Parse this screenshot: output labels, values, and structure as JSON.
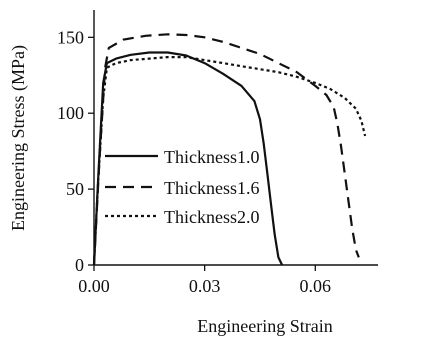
{
  "chart_data": {
    "type": "line",
    "xlabel": "Engineering Strain",
    "ylabel": "Engineering Stress (MPa)",
    "xlim": [
      0.0,
      0.077
    ],
    "ylim": [
      0,
      168
    ],
    "xticks": [
      0.0,
      0.03,
      0.06
    ],
    "xtick_labels": [
      "0.00",
      "0.03",
      "0.06"
    ],
    "yticks": [
      0,
      50,
      100,
      150
    ],
    "ytick_labels": [
      "0",
      "50",
      "100",
      "150"
    ],
    "legend_position": "lower-left",
    "series": [
      {
        "name": "Thickness1.0",
        "style": "solid",
        "color": "#111111",
        "x": [
          0.0,
          0.0012,
          0.0025,
          0.0035,
          0.006,
          0.01,
          0.015,
          0.02,
          0.025,
          0.03,
          0.035,
          0.04,
          0.0435,
          0.045,
          0.046,
          0.047,
          0.048,
          0.049,
          0.05,
          0.051
        ],
        "y": [
          0,
          60,
          120,
          133,
          136,
          138.5,
          140,
          140,
          138,
          133,
          126,
          118,
          108,
          96,
          80,
          60,
          40,
          20,
          5,
          0
        ]
      },
      {
        "name": "Thickness1.6",
        "style": "dashed",
        "color": "#111111",
        "x": [
          0.0,
          0.0015,
          0.003,
          0.004,
          0.008,
          0.014,
          0.02,
          0.025,
          0.03,
          0.035,
          0.04,
          0.045,
          0.05,
          0.055,
          0.06,
          0.063,
          0.065,
          0.066,
          0.067,
          0.068,
          0.069,
          0.07,
          0.071,
          0.0718
        ],
        "y": [
          0,
          70,
          130,
          143,
          148.5,
          151,
          152,
          151.5,
          150,
          147,
          143,
          139,
          133,
          127,
          118,
          112,
          104,
          93,
          78,
          60,
          42,
          24,
          10,
          5
        ]
      },
      {
        "name": "Thickness2.0",
        "style": "dotted",
        "color": "#111111",
        "x": [
          0.0,
          0.001,
          0.0025,
          0.0035,
          0.006,
          0.01,
          0.015,
          0.02,
          0.025,
          0.03,
          0.035,
          0.04,
          0.045,
          0.05,
          0.055,
          0.06,
          0.064,
          0.068,
          0.071,
          0.0725,
          0.0735
        ],
        "y": [
          0,
          50,
          110,
          130,
          133,
          135,
          136,
          137,
          137,
          135,
          133,
          131,
          129,
          127,
          124,
          120,
          116,
          110,
          103,
          95,
          85
        ]
      }
    ]
  }
}
